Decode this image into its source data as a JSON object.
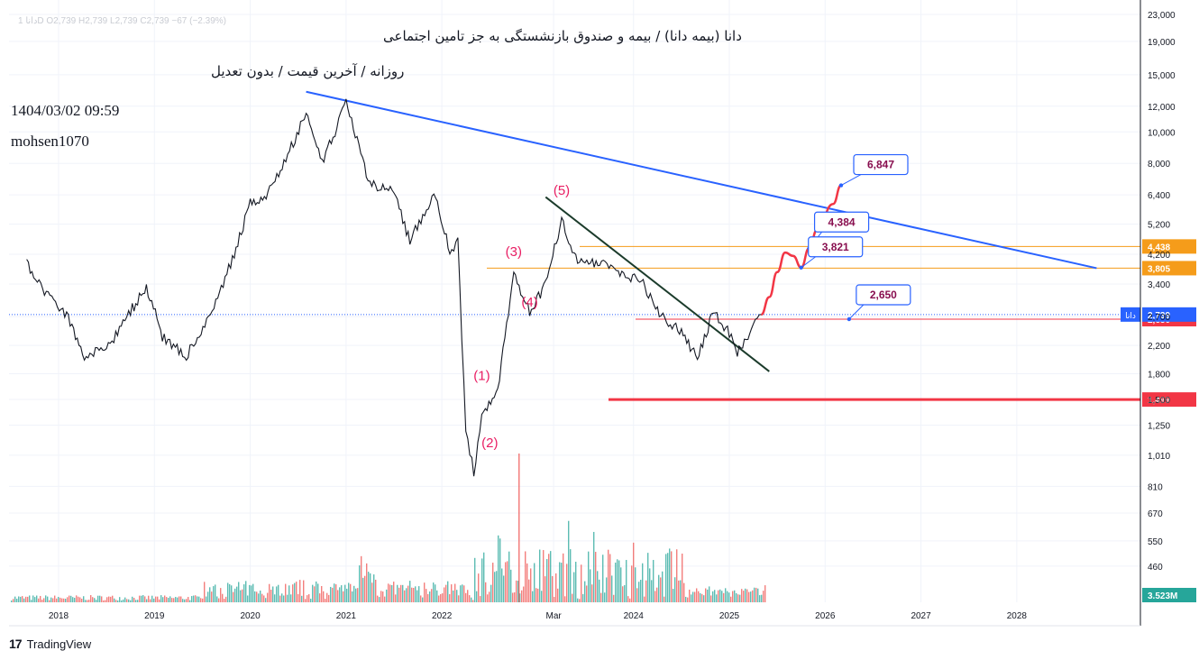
{
  "header": {
    "ohlc_faded": "دانا 1D  O2,739  H2,739  L2,739  C2,739  −67 (−2.39%)",
    "title": "دانا (بیمه دانا) / بیمه و صندوق بازنشستگی به جز تامین اجتماعی",
    "subtitle": "روزانه / آخرین قیمت / بدون تعدیل",
    "timestamp": "1404/03/02 09:59",
    "author": "mohsen1070"
  },
  "footer": {
    "brand_mark": "17",
    "brand_name": "TradingView"
  },
  "chart_data": {
    "type": "line",
    "scale": "log",
    "grid": true,
    "y_ticks": [
      "23,000",
      "19,000",
      "15,000",
      "12,000",
      "10,000",
      "8,000",
      "6,400",
      "5,200",
      "4,200",
      "3,400",
      "2,700",
      "2,200",
      "1,800",
      "1,500",
      "1,250",
      "1,010",
      "810",
      "670",
      "550",
      "460"
    ],
    "x_ticks": [
      "2018",
      "2019",
      "2020",
      "2021",
      "2022",
      "Mar",
      "2024",
      "2025",
      "2026",
      "2027",
      "2028"
    ],
    "price_path": [
      [
        "2017-09",
        3900
      ],
      [
        "2017-11",
        3300
      ],
      [
        "2018-02",
        2750
      ],
      [
        "2018-04",
        2050
      ],
      [
        "2018-07",
        2150
      ],
      [
        "2018-10",
        2800
      ],
      [
        "2018-12",
        3350
      ],
      [
        "2019-02",
        2350
      ],
      [
        "2019-05",
        2050
      ],
      [
        "2019-08",
        2700
      ],
      [
        "2019-11",
        4200
      ],
      [
        "2020-01",
        6000
      ],
      [
        "2020-03",
        6400
      ],
      [
        "2020-05",
        7700
      ],
      [
        "2020-08",
        11500
      ],
      [
        "2020-10",
        8000
      ],
      [
        "2021-01",
        12200
      ],
      [
        "2021-04",
        6900
      ],
      [
        "2021-07",
        6600
      ],
      [
        "2021-09",
        4600
      ],
      [
        "2021-12",
        6500
      ],
      [
        "2022-02",
        4300
      ],
      [
        "2022-03",
        4600
      ],
      [
        "2022-04",
        1200
      ],
      [
        "2022-05",
        900
      ],
      [
        "2022-06",
        1300
      ],
      [
        "2022-08",
        1600
      ],
      [
        "2022-10",
        3600
      ],
      [
        "2022-12",
        2800
      ],
      [
        "2023-02",
        3400
      ],
      [
        "2023-04",
        5300
      ],
      [
        "2023-06",
        4000
      ],
      [
        "2023-09",
        3900
      ],
      [
        "2023-12",
        3600
      ],
      [
        "2024-02",
        3500
      ],
      [
        "2024-04",
        2800
      ],
      [
        "2024-07",
        2400
      ],
      [
        "2024-09",
        2000
      ],
      [
        "2024-11",
        2800
      ],
      [
        "2025-01",
        2400
      ],
      [
        "2025-02",
        2100
      ],
      [
        "2025-04",
        2500
      ],
      [
        "2025-05",
        2739
      ]
    ],
    "forecast_path": [
      [
        "2025-05",
        2739
      ],
      [
        "2025-06",
        3100
      ],
      [
        "2025-07",
        3700
      ],
      [
        "2025-08",
        4250
      ],
      [
        "2025-09",
        4150
      ],
      [
        "2025-10",
        3821
      ],
      [
        "2025-11",
        4384
      ],
      [
        "2025-12",
        5000
      ],
      [
        "2026-02",
        6000
      ],
      [
        "2026-03",
        6847
      ]
    ],
    "trendlines": [
      {
        "name": "upper",
        "from": [
          "2020-08",
          13300
        ],
        "to": [
          "2028-11",
          3805
        ],
        "color": "#2962ff"
      },
      {
        "name": "downtrend",
        "from": [
          "2023-02",
          6300
        ],
        "to": [
          "2025-06",
          1830
        ],
        "color": "#1b3b2b"
      }
    ],
    "horizontal_levels": [
      {
        "value": 4438,
        "label": "4,438",
        "color": "#f59c1a"
      },
      {
        "value": 3805,
        "label": "3,805",
        "color": "#f59c1a"
      },
      {
        "value": 2650,
        "label": "2,650",
        "color": "#f23645"
      },
      {
        "value": 1499,
        "label": "1,499",
        "color": "#f23645"
      }
    ],
    "current_price": {
      "value": 2739,
      "label": "2,739",
      "tag": "دانا",
      "color": "#2962ff"
    },
    "volume_label": "3.523M",
    "annotations": [
      {
        "text": "6,847",
        "at": [
          "2026-03",
          6847
        ]
      },
      {
        "text": "4,384",
        "at": [
          "2025-11",
          4384
        ]
      },
      {
        "text": "3,821",
        "at": [
          "2025-10",
          3821
        ]
      },
      {
        "text": "2,650",
        "at": [
          "2026-04",
          2650
        ]
      }
    ],
    "wave_labels": [
      {
        "text": "(5)",
        "at": [
          "2023-04",
          6400
        ]
      },
      {
        "text": "(3)",
        "at": [
          "2022-10",
          4150
        ]
      },
      {
        "text": "(4)",
        "at": [
          "2022-12",
          2900
        ]
      },
      {
        "text": "(1)",
        "at": [
          "2022-06",
          1720
        ]
      },
      {
        "text": "(2)",
        "at": [
          "2022-07",
          1070
        ]
      }
    ],
    "colors": {
      "price": "#131722",
      "forecast": "#f23645",
      "wave": "#e91e63",
      "vol_up": "#26a69a",
      "vol_down": "#ef5350",
      "grid": "#f0f3fa"
    }
  }
}
